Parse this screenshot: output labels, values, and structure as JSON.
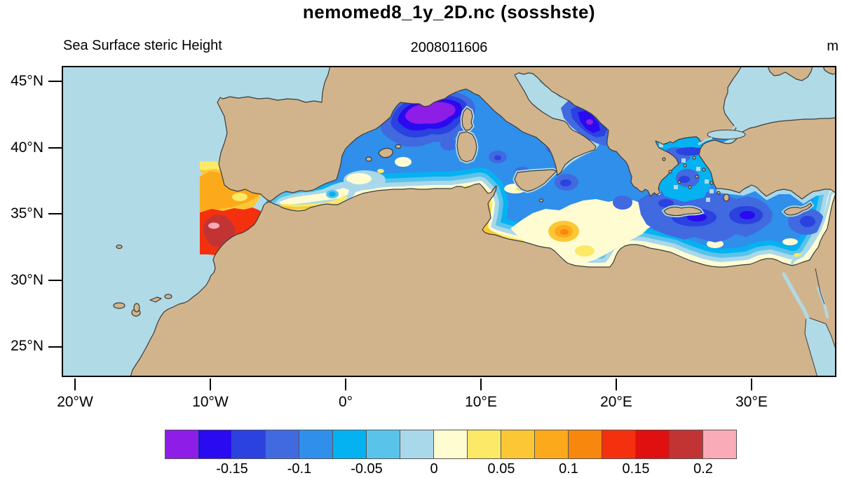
{
  "title": "nemomed8_1y_2D.nc (sosshste)",
  "header": {
    "subtitle_left": "Sea Surface steric Height",
    "subtitle_center": "2008011606",
    "units": "m"
  },
  "axes": {
    "x_ticks": [
      "20°W",
      "10°W",
      "0°",
      "10°E",
      "20°E",
      "30°E"
    ],
    "y_ticks": [
      "45°N",
      "40°N",
      "35°N",
      "30°N",
      "25°N"
    ]
  },
  "colorbar": {
    "colors": [
      "#8e1de8",
      "#2a0af0",
      "#2b41e0",
      "#4169e0",
      "#2f8fea",
      "#04b2f2",
      "#5ac3ea",
      "#a9d8ea",
      "#fffcd2",
      "#fbe967",
      "#fcc735",
      "#fcaa1c",
      "#f8870e",
      "#f5300e",
      "#e01010",
      "#c23434",
      "#f9abb7"
    ],
    "labels": [
      "-0.15",
      "-0.1",
      "-0.05",
      "0",
      "0.05",
      "0.1",
      "0.15",
      "0.2"
    ]
  },
  "map_colors": {
    "land": "#d2b48c",
    "ocean_nodata": "#b0dae6",
    "coastline": "#3c3c3c"
  },
  "chart_data": {
    "type": "heatmap",
    "subtype": "filled_contour_map",
    "dataset_file": "nemomed8_1y_2D.nc",
    "variable": "sosshste",
    "variable_long_name": "Sea Surface steric Height",
    "time_stamp": "2008011606",
    "units": "m",
    "lon_range_deg": [
      -21.0,
      36.25
    ],
    "lat_range_deg": [
      22.7,
      46.2
    ],
    "x_tick_values_deg_east": [
      -20,
      -10,
      0,
      10,
      20,
      30
    ],
    "y_tick_values_deg_north": [
      45,
      40,
      35,
      30,
      25
    ],
    "contour_interval": 0.025,
    "value_min": -0.2,
    "value_max": 0.225,
    "colorbar_tick_values": [
      -0.15,
      -0.1,
      -0.05,
      0,
      0.05,
      0.1,
      0.15,
      0.2
    ],
    "legend_position": "bottom",
    "grid": false,
    "regions": [
      {
        "name": "gulf_of_lion_core",
        "approx_value": -0.19
      },
      {
        "name": "northwest_mediterranean",
        "approx_value": -0.12
      },
      {
        "name": "western_mediterranean_background",
        "approx_value": -0.09
      },
      {
        "name": "tyrrhenian_sea",
        "approx_value": -0.1
      },
      {
        "name": "south_adriatic_core",
        "approx_value": -0.18
      },
      {
        "name": "aegean_sea",
        "approx_value": -0.13
      },
      {
        "name": "sea_south_of_crete_core",
        "approx_value": -0.16
      },
      {
        "name": "levantine_basin",
        "approx_value": -0.12
      },
      {
        "name": "alboran_sea",
        "approx_value": 0.0
      },
      {
        "name": "algerian_coast_band",
        "approx_value": 0.06
      },
      {
        "name": "gulf_of_gabes",
        "approx_value": 0.06
      },
      {
        "name": "gulf_of_sirte",
        "approx_value": 0.01
      },
      {
        "name": "sirte_orange_spot",
        "approx_value": 0.09
      },
      {
        "name": "egyptian_coast_band",
        "approx_value": -0.02
      },
      {
        "name": "atlantic_buffer_zone_north",
        "approx_value": 0.08
      },
      {
        "name": "atlantic_buffer_zone_red",
        "approx_value": 0.14
      },
      {
        "name": "atlantic_buffer_zone_core",
        "approx_value": 0.18
      },
      {
        "name": "atlantic_buffer_pink_spot",
        "approx_value": 0.21
      },
      {
        "name": "black_sea",
        "approx_value": null
      },
      {
        "name": "sea_of_marmara",
        "approx_value": null
      },
      {
        "name": "red_sea",
        "approx_value": null
      }
    ]
  }
}
